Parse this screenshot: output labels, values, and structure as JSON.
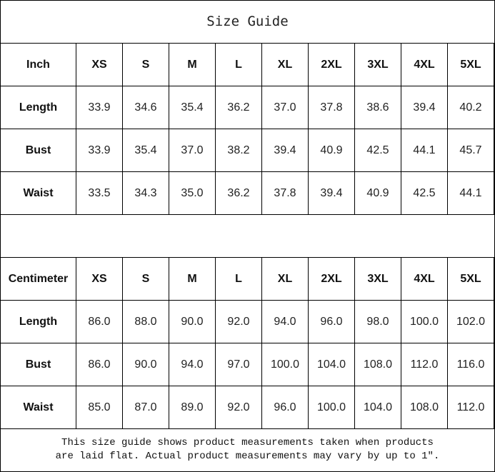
{
  "title": "Size Guide",
  "sizes": [
    "XS",
    "S",
    "M",
    "L",
    "XL",
    "2XL",
    "3XL",
    "4XL",
    "5XL"
  ],
  "tables": [
    {
      "unit": "Inch",
      "rows": [
        {
          "label": "Length",
          "values": [
            "33.9",
            "34.6",
            "35.4",
            "36.2",
            "37.0",
            "37.8",
            "38.6",
            "39.4",
            "40.2"
          ]
        },
        {
          "label": "Bust",
          "values": [
            "33.9",
            "35.4",
            "37.0",
            "38.2",
            "39.4",
            "40.9",
            "42.5",
            "44.1",
            "45.7"
          ]
        },
        {
          "label": "Waist",
          "values": [
            "33.5",
            "34.3",
            "35.0",
            "36.2",
            "37.8",
            "39.4",
            "40.9",
            "42.5",
            "44.1"
          ]
        }
      ]
    },
    {
      "unit": "Centimeter",
      "rows": [
        {
          "label": "Length",
          "values": [
            "86.0",
            "88.0",
            "90.0",
            "92.0",
            "94.0",
            "96.0",
            "98.0",
            "100.0",
            "102.0"
          ]
        },
        {
          "label": "Bust",
          "values": [
            "86.0",
            "90.0",
            "94.0",
            "97.0",
            "100.0",
            "104.0",
            "108.0",
            "112.0",
            "116.0"
          ]
        },
        {
          "label": "Waist",
          "values": [
            "85.0",
            "87.0",
            "89.0",
            "92.0",
            "96.0",
            "100.0",
            "104.0",
            "108.0",
            "112.0"
          ]
        }
      ]
    }
  ],
  "note": {
    "line1": "This size guide shows product measurements taken when products",
    "line2": "are laid flat. Actual product measurements may vary by up to 1″."
  }
}
